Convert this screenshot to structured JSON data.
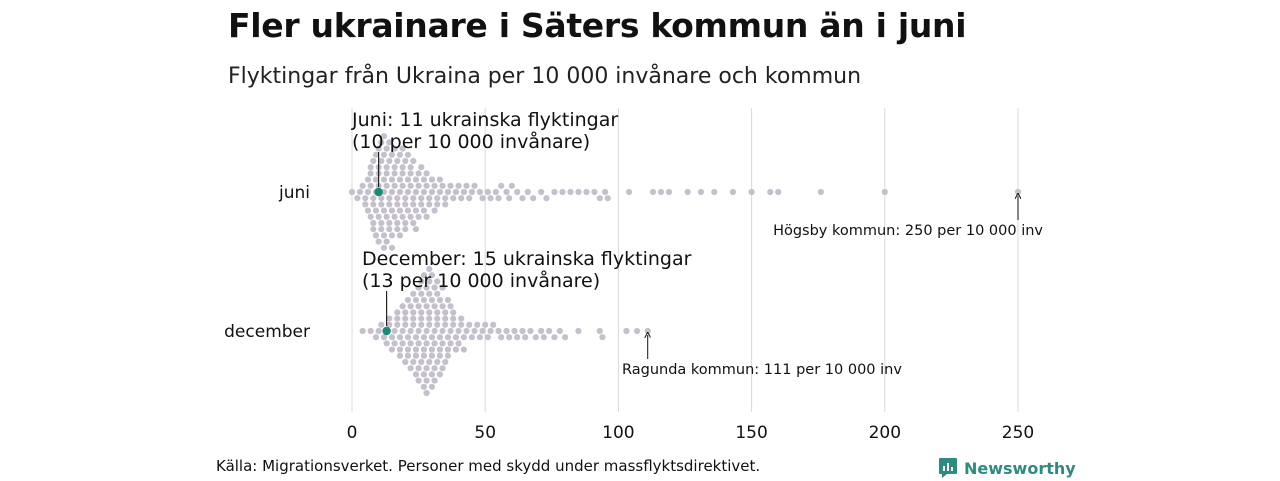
{
  "title": "Fler ukrainare i Säters kommun än i juni",
  "subtitle": "Flyktingar från Ukraina per 10 000 invånare och kommun",
  "source": "Källa: Migrationsverket. Personer med skydd under massflyktsdirektivet.",
  "brand": "Newsworthy",
  "colors": {
    "dot": "#c4c0cc",
    "highlight": "#1a8a78",
    "grid": "#d8d8d8",
    "text": "#111111",
    "brand": "#2e8b80"
  },
  "chart_data": {
    "type": "scatter",
    "subtype": "beeswarm",
    "xlim": [
      0,
      250
    ],
    "xticks": [
      0,
      50,
      100,
      150,
      200,
      250
    ],
    "grid": true,
    "categories": [
      "juni",
      "december"
    ],
    "series": [
      {
        "name": "juni",
        "highlight": {
          "value": 10,
          "label_line1": "Juni: 11 ukrainska flyktingar",
          "label_line2": "(10 per 10 000 invånare)"
        },
        "max_annotation": {
          "value": 250,
          "label": "Högsby kommun: 250 per 10 000 inv"
        },
        "values": [
          0,
          2,
          3,
          4,
          5,
          5,
          6,
          6,
          6,
          7,
          7,
          7,
          7,
          8,
          8,
          8,
          8,
          8,
          9,
          9,
          9,
          9,
          9,
          10,
          10,
          10,
          10,
          10,
          10,
          11,
          11,
          11,
          11,
          11,
          11,
          12,
          12,
          12,
          12,
          12,
          12,
          12,
          13,
          13,
          13,
          13,
          13,
          13,
          14,
          14,
          14,
          14,
          14,
          14,
          15,
          15,
          15,
          15,
          15,
          15,
          16,
          16,
          16,
          16,
          16,
          17,
          17,
          17,
          17,
          17,
          18,
          18,
          18,
          18,
          18,
          19,
          19,
          19,
          19,
          19,
          20,
          20,
          20,
          20,
          20,
          21,
          21,
          21,
          21,
          22,
          22,
          22,
          22,
          23,
          23,
          23,
          23,
          24,
          24,
          24,
          24,
          25,
          25,
          25,
          26,
          26,
          26,
          27,
          27,
          27,
          28,
          28,
          28,
          29,
          29,
          30,
          30,
          31,
          31,
          32,
          32,
          33,
          33,
          34,
          35,
          35,
          36,
          37,
          38,
          39,
          40,
          41,
          42,
          43,
          44,
          45,
          46,
          48,
          49,
          51,
          52,
          54,
          55,
          56,
          58,
          59,
          60,
          62,
          64,
          66,
          68,
          71,
          73,
          76,
          79,
          82,
          85,
          88,
          91,
          93,
          95,
          96,
          104,
          113,
          116,
          119,
          126,
          131,
          136,
          143,
          150,
          157,
          160,
          176,
          200,
          250
        ]
      },
      {
        "name": "december",
        "highlight": {
          "value": 13,
          "label_line1": "December: 15 ukrainska flyktingar",
          "label_line2": "(13 per 10 000 invånare)"
        },
        "max_annotation": {
          "value": 111,
          "label": "Ragunda kommun: 111 per 10 000 inv"
        },
        "values": [
          4,
          7,
          9,
          10,
          11,
          12,
          13,
          13,
          14,
          14,
          15,
          15,
          16,
          16,
          17,
          17,
          17,
          18,
          18,
          18,
          19,
          19,
          19,
          20,
          20,
          20,
          20,
          21,
          21,
          21,
          21,
          22,
          22,
          22,
          22,
          23,
          23,
          23,
          23,
          23,
          24,
          24,
          24,
          24,
          24,
          25,
          25,
          25,
          25,
          25,
          25,
          26,
          26,
          26,
          26,
          26,
          26,
          27,
          27,
          27,
          27,
          27,
          27,
          27,
          28,
          28,
          28,
          28,
          28,
          28,
          28,
          29,
          29,
          29,
          29,
          29,
          29,
          29,
          30,
          30,
          30,
          30,
          30,
          30,
          30,
          31,
          31,
          31,
          31,
          31,
          31,
          32,
          32,
          32,
          32,
          32,
          32,
          33,
          33,
          33,
          33,
          33,
          34,
          34,
          34,
          34,
          34,
          35,
          35,
          35,
          35,
          36,
          36,
          36,
          36,
          37,
          37,
          37,
          38,
          38,
          38,
          39,
          39,
          40,
          40,
          41,
          41,
          42,
          42,
          43,
          44,
          45,
          46,
          47,
          48,
          49,
          50,
          51,
          52,
          53,
          55,
          56,
          58,
          59,
          61,
          62,
          64,
          65,
          67,
          69,
          71,
          72,
          74,
          76,
          78,
          80,
          85,
          93,
          94,
          103,
          107,
          111
        ]
      }
    ]
  }
}
